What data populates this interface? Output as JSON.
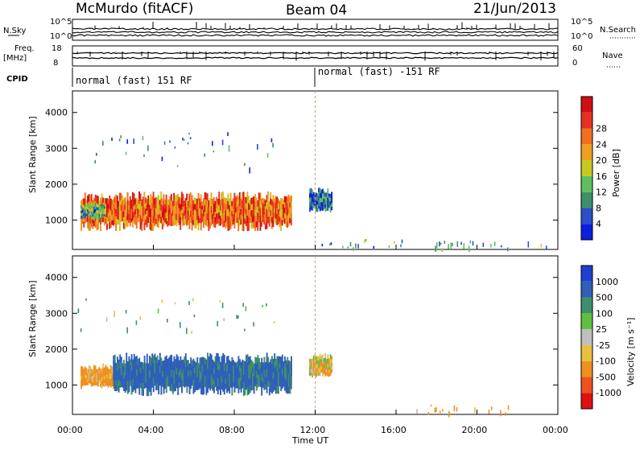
{
  "header": {
    "station": "McMurdo (fitACF)",
    "beam": "Beam 04",
    "date": "21/Jun/2013"
  },
  "top_panels": {
    "nsky_label": "N.Sky",
    "nsky_ticks": [
      "10^5",
      "10^0"
    ],
    "nsearch_label": "N.Search",
    "nsearch_ticks": [
      "10^5",
      "10^0"
    ],
    "freq_label": "Freq.",
    "freq_unit": "[MHz]",
    "freq_ticks": [
      "18",
      "8"
    ],
    "nave_label": "Nave",
    "nave_ticks": [
      "60",
      "0"
    ],
    "cpid_label": "CPID",
    "cpid_segments": [
      {
        "label": "normal (fast) 151 RF",
        "start_hour": 0.0
      },
      {
        "label": "normal (fast) -151 RF",
        "start_hour": 12.0
      }
    ]
  },
  "x_axis": {
    "label": "Time UT",
    "ticks": [
      "00:00",
      "04:00",
      "08:00",
      "12:00",
      "16:00",
      "20:00",
      "00:00"
    ],
    "range_hours": [
      0,
      24
    ]
  },
  "colors": {
    "power_scale": [
      "#0a1fe0",
      "#2a4fc8",
      "#3f8f6a",
      "#5fbf5f",
      "#c8c820",
      "#f0a020",
      "#f07020",
      "#e83020",
      "#d01010"
    ],
    "velocity_scale": [
      "#1f3fd0",
      "#2f5fb8",
      "#3f8f6a",
      "#5fc040",
      "#bfbfbf",
      "#e8c040",
      "#f09020",
      "#f05020",
      "#e01010"
    ]
  },
  "chart_data": [
    {
      "type": "heatmap",
      "title": "",
      "xlabel": "Time UT",
      "ylabel": "Slant Range [km]",
      "xlim": [
        0,
        24
      ],
      "ylim": [
        180,
        4600
      ],
      "yticks": [
        1000,
        2000,
        3000,
        4000
      ],
      "colorbar": {
        "label": "Power [dB]",
        "ticks": [
          4,
          8,
          12,
          16,
          20,
          24,
          28
        ],
        "range": [
          0,
          30
        ]
      },
      "echo_regions": [
        {
          "t_start": 0.4,
          "t_end": 10.8,
          "r_low": 700,
          "r_high": 1800,
          "value": 22
        },
        {
          "t_start": 0.4,
          "t_end": 1.6,
          "r_low": 1000,
          "r_high": 1500,
          "value": 10
        },
        {
          "t_start": 11.7,
          "t_end": 12.8,
          "r_low": 1200,
          "r_high": 1900,
          "value": 6
        },
        {
          "t_start": 0.2,
          "t_end": 10.0,
          "r_low": 2400,
          "r_high": 3600,
          "value": 6
        },
        {
          "t_start": 12.0,
          "t_end": 23.5,
          "r_low": 200,
          "r_high": 500,
          "value": 8
        }
      ]
    },
    {
      "type": "heatmap",
      "title": "",
      "xlabel": "Time UT",
      "ylabel": "Slant Range [km]",
      "xlim": [
        0,
        24
      ],
      "ylim": [
        180,
        4600
      ],
      "yticks": [
        1000,
        2000,
        3000,
        4000
      ],
      "colorbar": {
        "label": "Velocity [m s⁻¹]",
        "ticks": [
          1000,
          500,
          100,
          25,
          -25,
          -100,
          -500,
          -1000
        ]
      },
      "echo_regions": [
        {
          "t_start": 0.4,
          "t_end": 2.0,
          "r_low": 900,
          "r_high": 1600,
          "value": -200
        },
        {
          "t_start": 2.0,
          "t_end": 10.8,
          "r_low": 700,
          "r_high": 1900,
          "value": 600
        },
        {
          "t_start": 11.7,
          "t_end": 12.8,
          "r_low": 1200,
          "r_high": 1900,
          "value": -100
        },
        {
          "t_start": 0.2,
          "t_end": 10.0,
          "r_low": 2400,
          "r_high": 3600,
          "value": 100
        },
        {
          "t_start": 17.0,
          "t_end": 22.0,
          "r_low": 200,
          "r_high": 500,
          "value": -150
        }
      ]
    }
  ]
}
